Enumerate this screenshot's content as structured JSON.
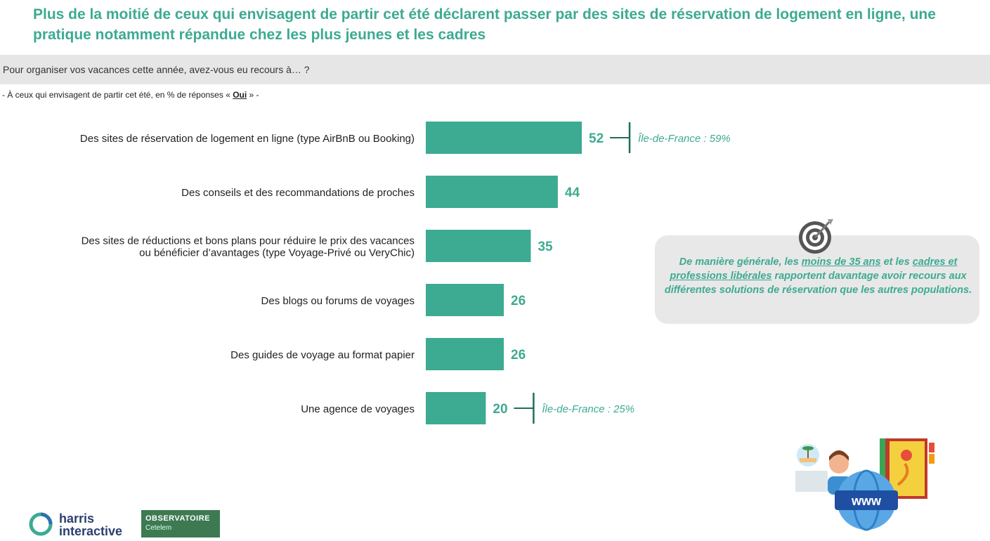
{
  "title": "Plus de la moitié de ceux qui envisagent de partir cet été déclarent passer par des sites de réservation de logement en ligne, une pratique notamment répandue chez les plus jeunes et les cadres",
  "question": "Pour organiser vos vacances cette année, avez-vous eu recours à… ?",
  "subtitle": {
    "before": "- À ceux qui envisagent de partir cet été, en % de réponses « ",
    "emph": "Oui",
    "after": " » -"
  },
  "chart_data": {
    "type": "bar",
    "orientation": "horizontal",
    "categories": [
      "Des sites de réservation de logement en ligne (type AirBnB ou Booking)",
      "Des conseils et des recommandations de proches",
      "Des sites de réductions et bons plans pour réduire le prix des vacances ou bénéficier d’avantages (type Voyage-Privé ou VeryChic)",
      "Des blogs ou forums de voyages",
      "Des guides de voyage au format papier",
      "Une agence de voyages"
    ],
    "category_lines": [
      [
        "Des sites de réservation de logement en ligne (type AirBnB ou Booking)"
      ],
      [
        "Des conseils et des recommandations de proches"
      ],
      [
        "Des sites de réductions et bons plans pour réduire le prix des vacances",
        "ou bénéficier d’avantages (type Voyage-Privé ou VeryChic)"
      ],
      [
        "Des blogs ou forums de voyages"
      ],
      [
        "Des guides de voyage au format papier"
      ],
      [
        "Une agence de voyages"
      ]
    ],
    "values": [
      52,
      44,
      35,
      26,
      26,
      20
    ],
    "annotations": [
      {
        "index": 0,
        "text": "Île-de-France : 59%"
      },
      {
        "index": 5,
        "text": "Île-de-France : 25%"
      }
    ],
    "xlim": [
      0,
      100
    ],
    "bar_color": "#3daa92",
    "label_color": "#3daa92"
  },
  "callout": {
    "p1": "De manière générale, les ",
    "u1": "moins de 35 ans",
    "p2": " et les ",
    "u2": "cadres et professions libérales",
    "p3": " rapportent davantage avoir recours aux différentes solutions de réservation que les autres populations."
  },
  "logos": {
    "harris_line1": "harris",
    "harris_line2": "interactive",
    "obs_line1": "OBSERVATOIRE",
    "obs_line2": "Cetelem"
  },
  "colors": {
    "accent": "#3daa92",
    "band": "#e6e6e6",
    "callout_bg": "#e8e8e8"
  },
  "illustration": {
    "web_label": "www"
  }
}
